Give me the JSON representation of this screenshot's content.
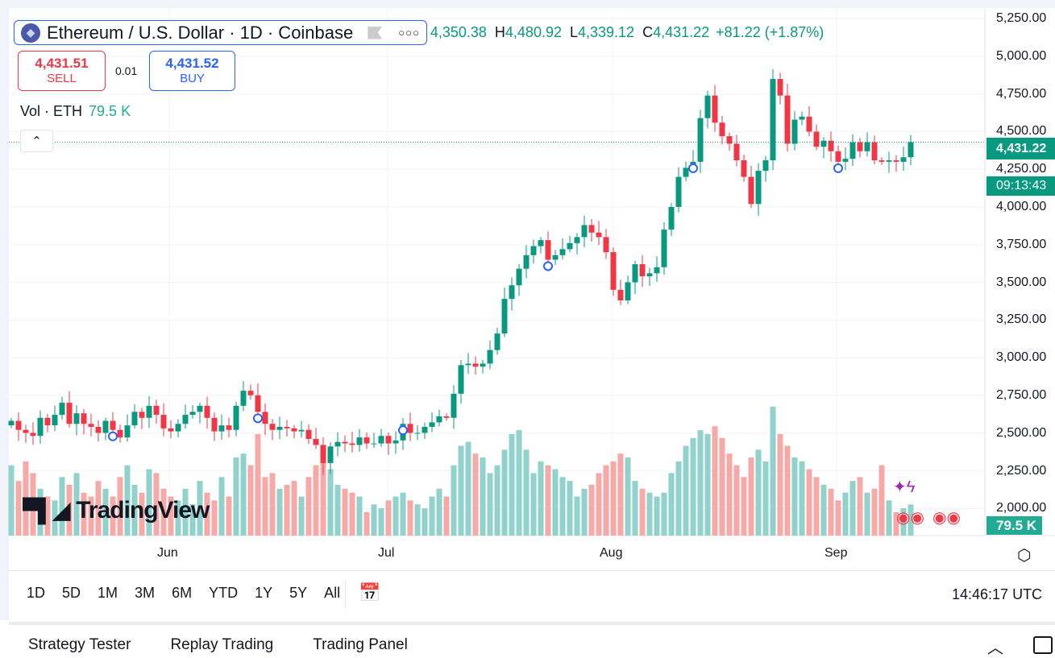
{
  "symbol": {
    "name": "Ethereum / U.S. Dollar · 1D · Coinbase",
    "icon": "ethereum-logo"
  },
  "ohlc": {
    "o_label": "O",
    "o": "4,350.38",
    "h_label": "H",
    "h": "4,480.92",
    "l_label": "L",
    "l": "4,339.12",
    "c_label": "C",
    "c": "4,431.22",
    "change": "+81.22 (+1.87%)"
  },
  "trade": {
    "sell_price": "4,431.51",
    "sell_label": "SELL",
    "spread": "0.01",
    "buy_price": "4,431.52",
    "buy_label": "BUY"
  },
  "volume_legend": {
    "label": "Vol · ETH",
    "value": "79.5 K"
  },
  "price_axis": [
    "5,250.00",
    "5,000.00",
    "4,750.00",
    "4,500.00",
    "4,250.00",
    "4,000.00",
    "3,750.00",
    "3,500.00",
    "3,250.00",
    "3,000.00",
    "2,750.00",
    "2,500.00",
    "2,250.00",
    "2,000.00"
  ],
  "current_price": {
    "price": "4,431.22",
    "countdown": "09:13:43"
  },
  "volume_badge": "79.5 K",
  "time_axis": [
    "Jun",
    "Jul",
    "Aug",
    "Sep"
  ],
  "brand": "TradingView",
  "ranges": [
    "1D",
    "5D",
    "1M",
    "3M",
    "6M",
    "YTD",
    "1Y",
    "5Y",
    "All"
  ],
  "clock": "14:46:17 UTC",
  "bottom_tabs": [
    "Strategy Tester",
    "Replay Trading",
    "Trading Panel"
  ],
  "colors": {
    "up": "#089981",
    "down": "#f23645",
    "vol_up": "#92d2cc",
    "vol_down": "#f7a9a7",
    "accent": "#2962ff"
  },
  "chart_data": {
    "type": "candlestick",
    "start_date": "May 10",
    "interval": "1D",
    "closes": [
      2580,
      2520,
      2500,
      2480,
      2600,
      2550,
      2620,
      2700,
      2560,
      2630,
      2560,
      2540,
      2500,
      2580,
      2520,
      2470,
      2550,
      2640,
      2600,
      2680,
      2620,
      2530,
      2510,
      2560,
      2620,
      2640,
      2680,
      2600,
      2510,
      2550,
      2520,
      2680,
      2780,
      2750,
      2640,
      2560,
      2520,
      2540,
      2530,
      2510,
      2520,
      2460,
      2420,
      2300,
      2410,
      2440,
      2430,
      2420,
      2470,
      2430,
      2430,
      2480,
      2430,
      2450,
      2560,
      2500,
      2500,
      2540,
      2570,
      2610,
      2600,
      2760,
      2950,
      2960,
      2940,
      2960,
      3050,
      3160,
      3390,
      3480,
      3590,
      3680,
      3740,
      3780,
      3650,
      3680,
      3720,
      3760,
      3800,
      3880,
      3830,
      3800,
      3700,
      3450,
      3380,
      3500,
      3620,
      3540,
      3560,
      3600,
      3850,
      4000,
      4200,
      4260,
      4300,
      4590,
      4740,
      4560,
      4470,
      4420,
      4310,
      4200,
      4020,
      4240,
      4310,
      4850,
      4740,
      4420,
      4580,
      4600,
      4500,
      4400,
      4440,
      4370,
      4300,
      4320,
      4430,
      4370,
      4430,
      4310,
      4300,
      4310,
      4300,
      4330,
      4431.22
    ],
    "volumes_k": [
      180,
      140,
      190,
      160,
      120,
      100,
      90,
      150,
      130,
      160,
      110,
      100,
      140,
      120,
      100,
      150,
      180,
      130,
      110,
      170,
      160,
      120,
      100,
      90,
      120,
      80,
      140,
      110,
      90,
      150,
      100,
      200,
      210,
      180,
      260,
      150,
      160,
      120,
      130,
      140,
      100,
      150,
      180,
      220,
      170,
      130,
      120,
      110,
      100,
      60,
      80,
      70,
      90,
      100,
      110,
      90,
      80,
      70,
      100,
      120,
      100,
      180,
      230,
      240,
      210,
      200,
      160,
      180,
      220,
      260,
      270,
      220,
      160,
      190,
      180,
      170,
      150,
      140,
      100,
      120,
      130,
      160,
      180,
      190,
      210,
      200,
      140,
      120,
      110,
      100,
      110,
      160,
      190,
      230,
      250,
      270,
      260,
      280,
      250,
      210,
      180,
      150,
      200,
      220,
      190,
      330,
      260,
      230,
      200,
      190,
      170,
      150,
      130,
      120,
      90,
      110,
      140,
      150,
      110,
      120,
      180,
      90,
      60,
      70,
      79.5
    ],
    "price_range": [
      2000,
      5250
    ],
    "event_markers": [
      14,
      34,
      54,
      74,
      94,
      114
    ]
  }
}
